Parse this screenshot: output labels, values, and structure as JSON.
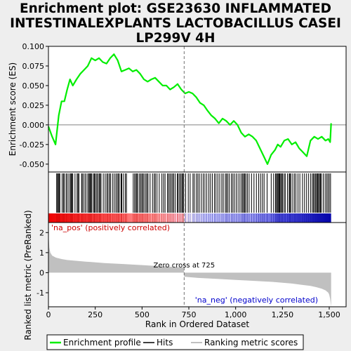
{
  "title_lines": [
    "Enrichment plot: GSE23630 INFLAMMATED",
    "INTESTINALEXPLANTS LACTOBACILLUS CASEI",
    "LP299V 4H"
  ],
  "legend": {
    "enrichment": "Enrichment profile",
    "hits": "Hits",
    "ranking": "Ranking metric scores"
  },
  "colors": {
    "enrichment_line": "#00ee00",
    "hits": "#000000",
    "ranking_fill": "#c0c0c0",
    "positive_label": "#cc0000",
    "negative_label": "#0000cc",
    "heat_positive": "#ee0000",
    "heat_negative": "#0000aa"
  },
  "chart_data": [
    {
      "type": "line",
      "name": "enrichment-profile",
      "ylabel": "Enrichment score (ES)",
      "xlim": [
        0,
        1590
      ],
      "ylim": [
        -0.06,
        0.1
      ],
      "yticks": [
        -0.05,
        -0.025,
        0.0,
        0.025,
        0.05,
        0.075,
        0.1
      ],
      "ytick_labels": [
        "-0.050",
        "-0.025",
        "0.000",
        "0.025",
        "0.050",
        "0.075",
        "0.100"
      ],
      "grid": false,
      "x": [
        0,
        20,
        38,
        55,
        70,
        85,
        100,
        115,
        130,
        150,
        170,
        190,
        210,
        230,
        250,
        270,
        290,
        310,
        330,
        350,
        370,
        390,
        410,
        430,
        450,
        470,
        490,
        510,
        530,
        550,
        570,
        590,
        610,
        630,
        650,
        670,
        690,
        710,
        730,
        750,
        770,
        790,
        810,
        830,
        850,
        870,
        890,
        910,
        930,
        950,
        970,
        990,
        1010,
        1030,
        1050,
        1070,
        1090,
        1110,
        1130,
        1150,
        1170,
        1190,
        1210,
        1225,
        1240,
        1260,
        1280,
        1300,
        1320,
        1340,
        1360,
        1380,
        1400,
        1420,
        1440,
        1460,
        1480,
        1495,
        1505,
        1510
      ],
      "y": [
        -0.002,
        -0.015,
        -0.025,
        0.012,
        0.03,
        0.03,
        0.045,
        0.058,
        0.05,
        0.058,
        0.065,
        0.07,
        0.075,
        0.085,
        0.082,
        0.085,
        0.08,
        0.078,
        0.085,
        0.09,
        0.082,
        0.068,
        0.07,
        0.072,
        0.068,
        0.07,
        0.065,
        0.058,
        0.055,
        0.058,
        0.06,
        0.055,
        0.05,
        0.05,
        0.045,
        0.048,
        0.052,
        0.045,
        0.04,
        0.042,
        0.04,
        0.035,
        0.028,
        0.025,
        0.018,
        0.012,
        0.008,
        0.002,
        0.008,
        0.005,
        0.0,
        0.005,
        0.0,
        -0.01,
        -0.015,
        -0.012,
        -0.015,
        -0.02,
        -0.03,
        -0.04,
        -0.05,
        -0.038,
        -0.032,
        -0.025,
        -0.028,
        -0.02,
        -0.018,
        -0.025,
        -0.022,
        -0.03,
        -0.035,
        -0.04,
        -0.02,
        -0.015,
        -0.018,
        -0.015,
        -0.02,
        -0.018,
        -0.022,
        0.002
      ]
    },
    {
      "type": "area",
      "name": "ranked-list-metric",
      "ylabel": "Ranked list metric (PreRanked)",
      "xlabel": "Rank in Ordered Dataset",
      "xlim": [
        0,
        1590
      ],
      "ylim": [
        -1.7,
        2.5
      ],
      "yticks": [
        -1,
        0,
        1,
        2
      ],
      "ytick_labels": [
        "-1",
        "0",
        "1",
        "2"
      ],
      "xticks": [
        0,
        250,
        500,
        750,
        1000,
        1250,
        1500
      ],
      "xtick_labels": [
        "0",
        "250",
        "500",
        "750",
        "1,000",
        "1,250",
        "1,500"
      ],
      "x": [
        0,
        2,
        5,
        10,
        20,
        40,
        70,
        100,
        200,
        300,
        400,
        500,
        600,
        700,
        724,
        725,
        750,
        800,
        900,
        1000,
        1100,
        1200,
        1250,
        1300,
        1350,
        1400,
        1430,
        1460,
        1480,
        1495,
        1500,
        1505,
        1510
      ],
      "values": [
        2.4,
        1.7,
        1.25,
        1.0,
        0.85,
        0.75,
        0.68,
        0.63,
        0.55,
        0.48,
        0.43,
        0.38,
        0.32,
        0.27,
        0.25,
        -0.2,
        -0.22,
        -0.26,
        -0.31,
        -0.36,
        -0.41,
        -0.46,
        -0.5,
        -0.54,
        -0.6,
        -0.66,
        -0.72,
        -0.8,
        -0.88,
        -1.0,
        -1.1,
        -1.3,
        -1.7
      ],
      "annotations": {
        "zero_cross": "Zero cross at 725",
        "positive": "'na_pos' (positively correlated)",
        "negative": "'na_neg' (negatively correlated)"
      },
      "zero_cross_rank": 725
    }
  ],
  "hits": [
    44,
    48,
    53,
    57,
    61,
    73,
    80,
    84,
    94,
    100,
    109,
    117,
    121,
    125,
    130,
    142,
    153,
    158,
    163,
    177,
    181,
    189,
    197,
    206,
    214,
    218,
    223,
    228,
    232,
    241,
    246,
    251,
    258,
    264,
    271,
    276,
    281,
    293,
    303,
    312,
    318,
    326,
    331,
    342,
    351,
    360,
    367,
    373,
    379,
    388,
    392,
    401,
    411,
    417,
    453,
    460,
    467,
    472,
    477,
    486,
    493,
    499,
    505,
    511,
    520,
    526,
    532,
    543,
    556,
    565,
    571,
    580,
    592,
    606,
    615,
    623,
    636,
    642,
    649,
    656,
    663,
    669,
    677,
    688,
    693,
    700,
    707,
    713,
    718,
    723,
    733,
    747,
    757,
    772,
    779,
    790,
    798,
    806,
    817,
    827,
    836,
    846,
    857,
    866,
    876,
    887,
    895,
    905,
    915,
    926,
    934,
    945,
    951,
    958,
    966,
    977,
    985,
    993,
    1003,
    1013,
    1023,
    1032,
    1038,
    1044,
    1049,
    1055,
    1063,
    1072,
    1085,
    1098,
    1111,
    1123,
    1133,
    1143,
    1152,
    1168,
    1190,
    1203,
    1213,
    1218,
    1223,
    1227,
    1232,
    1236,
    1241,
    1246,
    1251,
    1259,
    1265,
    1277,
    1286,
    1290,
    1295,
    1305,
    1314,
    1322,
    1333,
    1343,
    1357,
    1368,
    1379,
    1390,
    1401,
    1410,
    1416,
    1422,
    1428,
    1433,
    1438,
    1443,
    1448,
    1453,
    1458,
    1468,
    1478,
    1486,
    1493,
    1500,
    1507
  ]
}
